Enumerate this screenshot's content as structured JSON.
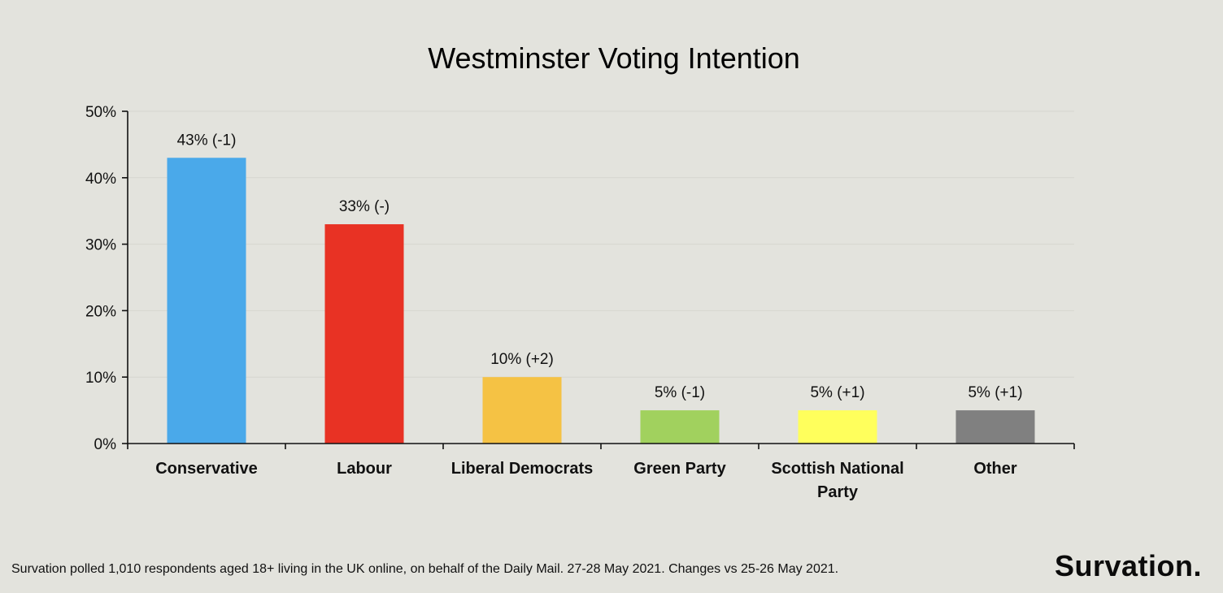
{
  "chart_data": {
    "type": "bar",
    "title": "Westminster Voting Intention",
    "categories": [
      "Conservative",
      "Labour",
      "Liberal Democrats",
      "Green Party",
      "Scottish National Party",
      "Other"
    ],
    "category_lines": [
      [
        "Conservative"
      ],
      [
        "Labour"
      ],
      [
        "Liberal Democrats"
      ],
      [
        "Green Party"
      ],
      [
        "Scottish National",
        "Party"
      ],
      [
        "Other"
      ]
    ],
    "values": [
      43,
      33,
      10,
      5,
      5,
      5
    ],
    "data_labels": [
      "43% (-1)",
      "33% (-)",
      "10% (+2)",
      "5% (-1)",
      "5% (+1)",
      "5% (+1)"
    ],
    "colors": [
      "#4aa9ea",
      "#e83224",
      "#f5c244",
      "#a1d15e",
      "#ffff5c",
      "#808080"
    ],
    "ylim": [
      0,
      50
    ],
    "yticks": [
      "0%",
      "10%",
      "20%",
      "30%",
      "40%",
      "50%"
    ],
    "grid": true,
    "xlabel": "",
    "ylabel": ""
  },
  "footnote": "Survation polled 1,010 respondents aged 18+ living in the UK online, on behalf of the Daily Mail. 27-28 May 2021. Changes vs 25-26 May 2021.",
  "brand": "Survation."
}
